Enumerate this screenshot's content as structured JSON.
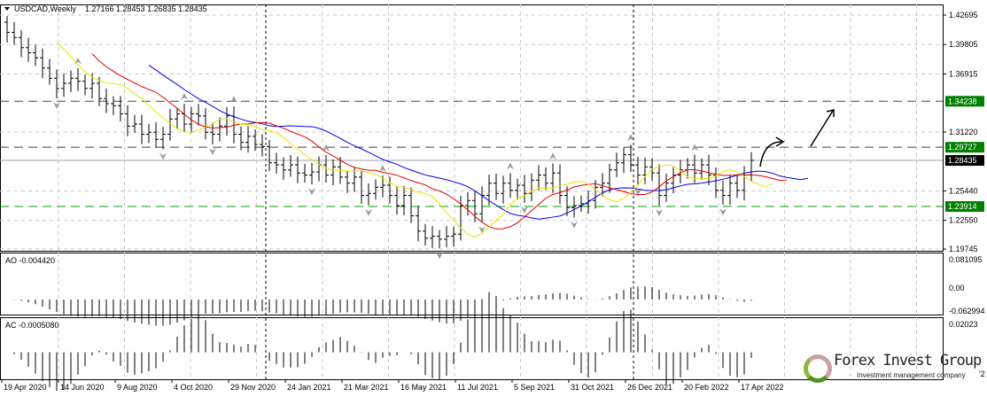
{
  "header": {
    "symbol": "USDCAD,Weekly",
    "ohlc": "1.27166 1.28453 1.26835 1.28435"
  },
  "colors": {
    "bull": "#000000",
    "ma_fast": "#e00000",
    "ma_slow": "#0000e0",
    "ma_yellow": "#f0e000",
    "green_level": "#008000",
    "current": "#000000"
  },
  "chart_data": {
    "type": "ohlc",
    "title": "USDCAD,Weekly",
    "ylim": [
      1.19745,
      1.42695
    ],
    "y_ticks": [
      "1.42695",
      "1.39805",
      "1.36915",
      "1.31220",
      "1.25440",
      "1.22550",
      "1.19745"
    ],
    "y_tick_values": [
      1.42695,
      1.39805,
      1.36915,
      1.3122,
      1.2544,
      1.2255,
      1.19745
    ],
    "x_ticks": [
      "19 Apr 2020",
      "14 Jun 2020",
      "9 Aug 2020",
      "4 Oct 2020",
      "29 Nov 2020",
      "24 Jan 2021",
      "21 Mar 2021",
      "16 May 2021",
      "11 Jul 2021",
      "5 Sep 2021",
      "31 Oct 2021",
      "26 Dec 2021",
      "20 Feb 2022",
      "17 Apr 2022"
    ],
    "weekly_close": [
      1.41,
      1.405,
      1.395,
      1.39,
      1.385,
      1.375,
      1.365,
      1.355,
      1.36,
      1.365,
      1.362,
      1.355,
      1.36,
      1.345,
      1.34,
      1.338,
      1.33,
      1.318,
      1.32,
      1.31,
      1.312,
      1.305,
      1.31,
      1.325,
      1.33,
      1.32,
      1.33,
      1.328,
      1.312,
      1.31,
      1.318,
      1.328,
      1.31,
      1.302,
      1.308,
      1.3,
      1.298,
      1.282,
      1.28,
      1.275,
      1.28,
      1.272,
      1.27,
      1.273,
      1.28,
      1.27,
      1.278,
      1.268,
      1.262,
      1.268,
      1.25,
      1.252,
      1.258,
      1.26,
      1.25,
      1.24,
      1.25,
      1.23,
      1.215,
      1.208,
      1.21,
      1.207,
      1.21,
      1.212,
      1.24,
      1.245,
      1.232,
      1.25,
      1.262,
      1.252,
      1.262,
      1.255,
      1.26,
      1.252,
      1.265,
      1.27,
      1.262,
      1.272,
      1.25,
      1.238,
      1.24,
      1.242,
      1.245,
      1.258,
      1.262,
      1.275,
      1.282,
      1.29,
      1.28,
      1.27,
      1.278,
      1.272,
      1.25,
      1.262,
      1.27,
      1.275,
      1.28,
      1.272,
      1.28,
      1.27,
      1.255,
      1.25,
      1.262,
      1.255,
      1.27,
      1.2844
    ],
    "levels": [
      {
        "label": "1.34238",
        "value": 1.34238,
        "style": "dashed"
      },
      {
        "label": "1.29727",
        "value": 1.29727,
        "style": "dashed"
      },
      {
        "label": "1.28435",
        "value": 1.28435,
        "style": "current"
      },
      {
        "label": "1.23914",
        "value": 1.23914,
        "style": "green-dashed"
      }
    ],
    "ao": {
      "label": "AO -0.004420",
      "ticks": [
        "0.081095",
        "0.00",
        "-0.062994"
      ],
      "range": [
        -0.062994,
        0.081095
      ]
    },
    "ac": {
      "label": "AC -0.0005080",
      "ticks": [
        "0.02023"
      ],
      "range": [
        -0.03,
        0.02023
      ]
    }
  },
  "logo": {
    "name": "Forex Invest Group OU",
    "tagline": "Investment management company",
    "suffix": "'2"
  }
}
